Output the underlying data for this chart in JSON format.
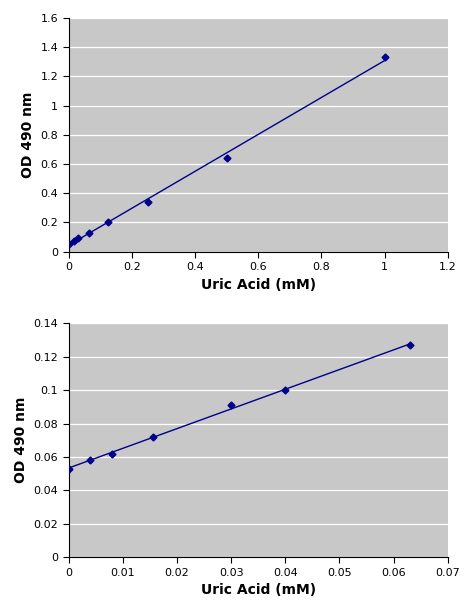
{
  "plot1": {
    "x": [
      0,
      0.016,
      0.031,
      0.063,
      0.125,
      0.25,
      0.5,
      1.0
    ],
    "y": [
      0.055,
      0.075,
      0.09,
      0.13,
      0.2,
      0.34,
      0.64,
      1.33
    ],
    "xlabel": "Uric Acid (mM)",
    "ylabel": "OD 490 nm",
    "xlim": [
      0,
      1.2
    ],
    "ylim": [
      0,
      1.6
    ],
    "xticks": [
      0,
      0.2,
      0.4,
      0.6,
      0.8,
      1.0,
      1.2
    ],
    "yticks": [
      0,
      0.2,
      0.4,
      0.6,
      0.8,
      1.0,
      1.2,
      1.4,
      1.6
    ]
  },
  "plot2": {
    "x": [
      0,
      0.004,
      0.008,
      0.0156,
      0.03,
      0.04,
      0.063
    ],
    "y": [
      0.053,
      0.058,
      0.062,
      0.072,
      0.091,
      0.1,
      0.127
    ],
    "xlabel": "Uric Acid (mM)",
    "ylabel": "OD 490 nm",
    "xlim": [
      0,
      0.07
    ],
    "ylim": [
      0,
      0.14
    ],
    "xticks": [
      0,
      0.01,
      0.02,
      0.03,
      0.04,
      0.05,
      0.06,
      0.07
    ],
    "yticks": [
      0,
      0.02,
      0.04,
      0.06,
      0.08,
      0.1,
      0.12,
      0.14
    ]
  },
  "line_color": "#00008B",
  "marker": "D",
  "marker_size": 3.5,
  "bg_color": "#C8C8C8",
  "outer_bg": "#FFFFFF",
  "line_width": 1.0
}
